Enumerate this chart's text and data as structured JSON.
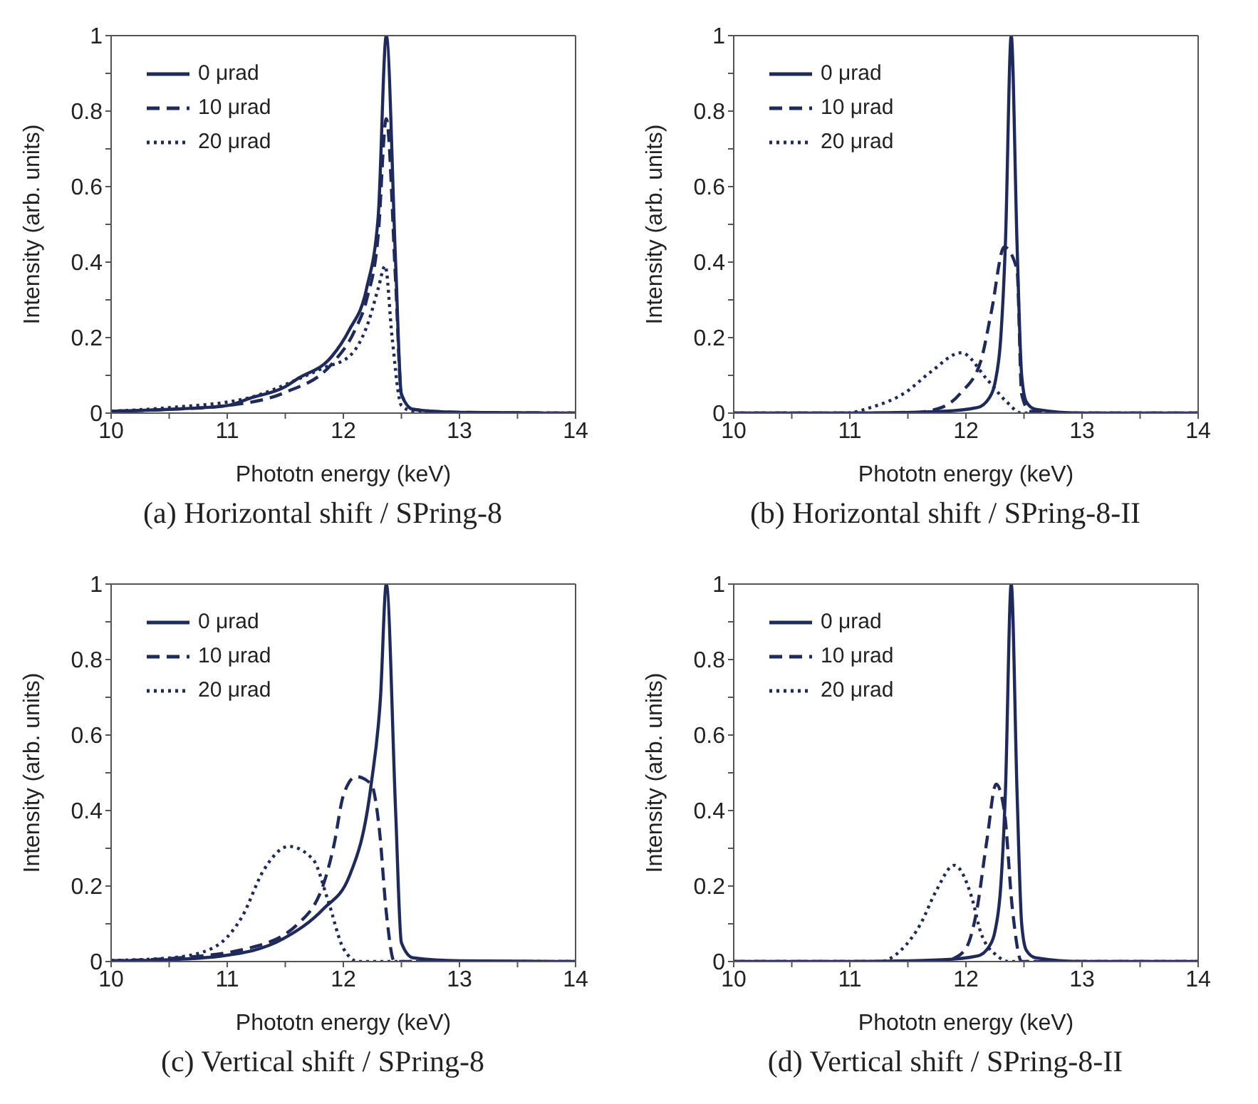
{
  "chart_data": [
    {
      "type": "line",
      "xlabel": "Phototn energy (keV)",
      "ylabel": "Intensity (arb. units)",
      "annotations": [
        "(a) Horizontal shift / SPring-8"
      ],
      "xlim": [
        10,
        14
      ],
      "ylim": [
        0,
        1
      ],
      "xticks": [
        10,
        {
          "value": 10.5,
          "label": null
        },
        11,
        {
          "value": 11.5,
          "label": null
        },
        12,
        {
          "value": 12.5,
          "label": null
        },
        13,
        {
          "value": 13.5,
          "label": null
        },
        14
      ],
      "yticks": [
        0,
        {
          "value": 0.1,
          "label": null
        },
        0.2,
        {
          "value": 0.3,
          "label": null
        },
        0.4,
        {
          "value": 0.5,
          "label": null
        },
        0.6,
        {
          "value": 0.7,
          "label": null
        },
        0.8,
        {
          "value": 0.9,
          "label": null
        },
        1
      ],
      "grid": false,
      "legend": "top left",
      "marker": "none",
      "series": [
        {
          "name": "0 μrad",
          "color": "#1f2a5c",
          "line_style": "solid",
          "x": [
            10,
            10.5,
            11,
            11.2,
            11.5,
            11.6,
            11.9,
            12.05,
            12.2,
            12.3,
            12.37,
            12.45,
            12.5,
            12.6,
            13,
            14
          ],
          "values": [
            0.005,
            0.01,
            0.02,
            0.04,
            0.07,
            0.09,
            0.15,
            0.22,
            0.33,
            0.52,
            1,
            0.4,
            0.05,
            0.01,
            0.002,
            0
          ]
        },
        {
          "name": "10 μrad",
          "color": "#1f2a5c",
          "line_style": "dashed",
          "x": [
            10,
            10.5,
            11,
            11.5,
            11.9,
            12.1,
            12.2,
            12.3,
            12.37,
            12.45,
            12.5,
            12.6,
            13,
            14
          ],
          "values": [
            0.005,
            0.01,
            0.02,
            0.055,
            0.13,
            0.22,
            0.3,
            0.47,
            0.78,
            0.35,
            0.05,
            0.01,
            0.002,
            0
          ]
        },
        {
          "name": "20 μrad",
          "color": "#1f2a5c",
          "line_style": "dotted",
          "x": [
            10,
            10.52,
            11.18,
            11.61,
            11.83,
            12.05,
            12.22,
            12.3,
            12.36,
            12.42,
            12.5,
            12.6,
            13,
            14
          ],
          "values": [
            0.005,
            0.015,
            0.04,
            0.09,
            0.12,
            0.15,
            0.245,
            0.33,
            0.39,
            0.2,
            0.02,
            0.005,
            0,
            0
          ]
        }
      ]
    },
    {
      "type": "line",
      "xlabel": "Phototn energy (keV)",
      "ylabel": "Intensity (arb. units)",
      "annotations": [
        "(b) Horizontal shift / SPring-8-II"
      ],
      "xlim": [
        10,
        14
      ],
      "ylim": [
        0,
        1
      ],
      "xticks": [
        10,
        {
          "value": 10.5,
          "label": null
        },
        11,
        {
          "value": 11.5,
          "label": null
        },
        12,
        {
          "value": 12.5,
          "label": null
        },
        13,
        {
          "value": 13.5,
          "label": null
        },
        14
      ],
      "yticks": [
        0,
        {
          "value": 0.1,
          "label": null
        },
        0.2,
        {
          "value": 0.3,
          "label": null
        },
        0.4,
        {
          "value": 0.5,
          "label": null
        },
        0.6,
        {
          "value": 0.7,
          "label": null
        },
        0.8,
        {
          "value": 0.9,
          "label": null
        },
        1
      ],
      "grid": false,
      "legend": "top left",
      "marker": "none",
      "series": [
        {
          "name": "0 μrad",
          "color": "#1f2a5c",
          "line_style": "solid",
          "x": [
            10,
            11,
            11.8,
            12.1,
            12.2,
            12.25,
            12.3,
            12.34,
            12.39,
            12.44,
            12.48,
            12.52,
            12.6,
            13,
            14
          ],
          "values": [
            0,
            0,
            0.005,
            0.015,
            0.04,
            0.08,
            0.2,
            0.45,
            1,
            0.45,
            0.1,
            0.03,
            0.01,
            0,
            0
          ]
        },
        {
          "name": "10 μrad",
          "color": "#1f2a5c",
          "line_style": "dashed",
          "x": [
            10,
            11.5,
            11.79,
            11.96,
            12.13,
            12.22,
            12.33,
            12.44,
            12.48,
            12.55,
            13,
            14
          ],
          "values": [
            0,
            0,
            0.015,
            0.055,
            0.14,
            0.27,
            0.44,
            0.38,
            0.05,
            0.005,
            0,
            0
          ]
        },
        {
          "name": "20 μrad",
          "color": "#1f2a5c",
          "line_style": "dotted",
          "x": [
            10,
            10.96,
            11.18,
            11.48,
            11.7,
            11.96,
            12.18,
            12.35,
            12.48,
            13,
            14
          ],
          "values": [
            0,
            0,
            0.015,
            0.055,
            0.11,
            0.16,
            0.09,
            0.03,
            0,
            0,
            0
          ]
        }
      ]
    },
    {
      "type": "line",
      "xlabel": "Phototn energy (keV)",
      "ylabel": "Intensity (arb. units)",
      "annotations": [
        "(c) Vertical shift / SPring-8"
      ],
      "xlim": [
        10,
        14
      ],
      "ylim": [
        0,
        1
      ],
      "xticks": [
        10,
        {
          "value": 10.5,
          "label": null
        },
        11,
        {
          "value": 11.5,
          "label": null
        },
        12,
        {
          "value": 12.5,
          "label": null
        },
        13,
        {
          "value": 13.5,
          "label": null
        },
        14
      ],
      "yticks": [
        0,
        {
          "value": 0.1,
          "label": null
        },
        0.2,
        {
          "value": 0.3,
          "label": null
        },
        0.4,
        {
          "value": 0.5,
          "label": null
        },
        0.6,
        {
          "value": 0.7,
          "label": null
        },
        0.8,
        {
          "value": 0.9,
          "label": null
        },
        1
      ],
      "grid": false,
      "legend": "top left",
      "marker": "none",
      "series": [
        {
          "name": "0 μrad",
          "color": "#1f2a5c",
          "line_style": "solid",
          "x": [
            10,
            10.5,
            10.96,
            11.48,
            11.83,
            12.05,
            12.24,
            12.32,
            12.37,
            12.45,
            12.5,
            12.6,
            13,
            14
          ],
          "values": [
            0.002,
            0.005,
            0.015,
            0.06,
            0.14,
            0.225,
            0.47,
            0.7,
            1,
            0.4,
            0.05,
            0.01,
            0.002,
            0
          ]
        },
        {
          "name": "10 μrad",
          "color": "#1f2a5c",
          "line_style": "dashed",
          "x": [
            10,
            10.5,
            11.18,
            11.61,
            11.85,
            11.92,
            12,
            12.11,
            12.24,
            12.31,
            12.37,
            12.44,
            13,
            14
          ],
          "values": [
            0.002,
            0.008,
            0.035,
            0.1,
            0.225,
            0.31,
            0.44,
            0.49,
            0.47,
            0.35,
            0.13,
            0,
            0,
            0
          ]
        },
        {
          "name": "20 μrad",
          "color": "#1f2a5c",
          "line_style": "dotted",
          "x": [
            10,
            10.52,
            10.87,
            11.13,
            11.31,
            11.53,
            11.74,
            11.87,
            12,
            12.13,
            13,
            14
          ],
          "values": [
            0.003,
            0.01,
            0.035,
            0.12,
            0.24,
            0.305,
            0.27,
            0.16,
            0.035,
            0,
            0,
            0
          ]
        }
      ]
    },
    {
      "type": "line",
      "xlabel": "Phototn energy (keV)",
      "ylabel": "Intensity (arb. units)",
      "annotations": [
        "(d) Vertical shift / SPring-8-II"
      ],
      "xlim": [
        10,
        14
      ],
      "ylim": [
        0,
        1
      ],
      "xticks": [
        10,
        {
          "value": 10.5,
          "label": null
        },
        11,
        {
          "value": 11.5,
          "label": null
        },
        12,
        {
          "value": 12.5,
          "label": null
        },
        13,
        {
          "value": 13.5,
          "label": null
        },
        14
      ],
      "yticks": [
        0,
        {
          "value": 0.1,
          "label": null
        },
        0.2,
        {
          "value": 0.3,
          "label": null
        },
        0.4,
        {
          "value": 0.5,
          "label": null
        },
        0.6,
        {
          "value": 0.7,
          "label": null
        },
        0.8,
        {
          "value": 0.9,
          "label": null
        },
        1
      ],
      "grid": false,
      "legend": "top left",
      "marker": "none",
      "series": [
        {
          "name": "0 μrad",
          "color": "#1f2a5c",
          "line_style": "solid",
          "x": [
            10,
            11,
            11.8,
            12.1,
            12.2,
            12.25,
            12.3,
            12.34,
            12.39,
            12.44,
            12.48,
            12.52,
            12.6,
            13,
            14
          ],
          "values": [
            0,
            0,
            0.005,
            0.015,
            0.04,
            0.08,
            0.2,
            0.45,
            1,
            0.45,
            0.1,
            0.03,
            0.01,
            0,
            0
          ]
        },
        {
          "name": "10 μrad",
          "color": "#1f2a5c",
          "line_style": "dashed",
          "x": [
            10,
            11.8,
            11.87,
            12,
            12.09,
            12.18,
            12.26,
            12.33,
            12.4,
            12.48,
            13,
            14
          ],
          "values": [
            0,
            0,
            0.005,
            0.035,
            0.13,
            0.32,
            0.47,
            0.4,
            0.14,
            0,
            0,
            0
          ]
        },
        {
          "name": "20 μrad",
          "color": "#1f2a5c",
          "line_style": "dotted",
          "x": [
            10,
            11.26,
            11.44,
            11.61,
            11.74,
            11.9,
            12.05,
            12.13,
            12.27,
            12.37,
            13,
            14
          ],
          "values": [
            0,
            0,
            0.03,
            0.1,
            0.185,
            0.255,
            0.17,
            0.075,
            0.015,
            0,
            0,
            0
          ]
        }
      ]
    }
  ]
}
